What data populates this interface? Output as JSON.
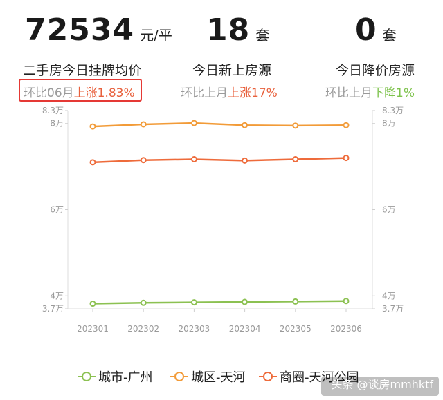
{
  "stats": [
    {
      "value": "72534",
      "unit": "元/平",
      "label": "二手房今日挂牌均价",
      "cmp_prefix": "环比06月",
      "cmp_change": "上涨1.83%",
      "cmp_direction": "up"
    },
    {
      "value": "18",
      "unit": "套",
      "label": "今日新上房源",
      "cmp_prefix": "环比上月",
      "cmp_change": "上涨17%",
      "cmp_direction": "up"
    },
    {
      "value": "0",
      "unit": "套",
      "label": "今日降价房源",
      "cmp_prefix": "环比上月",
      "cmp_change": "下降1%",
      "cmp_direction": "down"
    }
  ],
  "chart_data": {
    "type": "line",
    "title": "",
    "xlabel": "",
    "ylabel": "",
    "x": [
      "202301",
      "202302",
      "202303",
      "202304",
      "202305",
      "202306"
    ],
    "y_ticks_left": [
      {
        "value": 83000,
        "label": "8.3万"
      },
      {
        "value": 80000,
        "label": "8万"
      },
      {
        "value": 60000,
        "label": "6万"
      },
      {
        "value": 40000,
        "label": "4万"
      },
      {
        "value": 37000,
        "label": "3.7万"
      }
    ],
    "y_ticks_right": [
      {
        "value": 83000,
        "label": "8.3万"
      },
      {
        "value": 80000,
        "label": "8万"
      },
      {
        "value": 60000,
        "label": "6万"
      },
      {
        "value": 40000,
        "label": "4万"
      },
      {
        "value": 37000,
        "label": "3.7万"
      }
    ],
    "ylim": [
      37000,
      83000
    ],
    "grid": false,
    "legend_position": "bottom",
    "series": [
      {
        "name": "城市-广州",
        "color": "#8cc152",
        "values": [
          38200,
          38400,
          38500,
          38600,
          38700,
          38800
        ]
      },
      {
        "name": "城区-天河",
        "color": "#f29b38",
        "values": [
          79300,
          79800,
          80100,
          79600,
          79500,
          79600
        ]
      },
      {
        "name": "商圈-天河公园",
        "color": "#ee6b3b",
        "values": [
          71000,
          71500,
          71700,
          71400,
          71700,
          72000
        ]
      }
    ]
  },
  "watermark": {
    "text": "头条 @谈房mmhktf"
  }
}
